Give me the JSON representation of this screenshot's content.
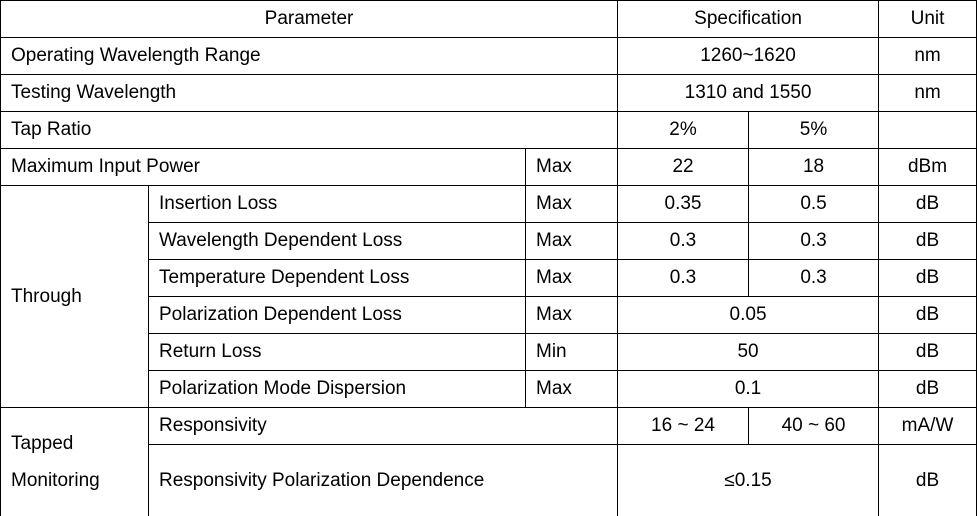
{
  "table": {
    "header": [
      "Parameter",
      "Specification",
      "Unit"
    ],
    "rows": [
      [
        "Operating Wavelength Range",
        "1260~1620",
        "nm"
      ],
      [
        "Testing Wavelength",
        "1310 and 1550",
        "nm"
      ],
      [
        "Tap Ratio",
        "2%",
        "5%"
      ],
      [
        "Maximum Input Power",
        "Max",
        "22",
        "18",
        "dBm"
      ],
      [
        "Through",
        "Insertion Loss",
        "Max",
        "0.35",
        "0.5",
        "dB"
      ],
      [
        "Wavelength Dependent Loss",
        "Max",
        "0.3",
        "0.3",
        "dB"
      ],
      [
        "Temperature Dependent Loss",
        "Max",
        "0.3",
        "0.3",
        "dB"
      ],
      [
        "Polarization Dependent Loss",
        "Max",
        "0.05",
        "dB"
      ],
      [
        "Return Loss",
        "Min",
        "50",
        "dB"
      ],
      [
        "Polarization Mode Dispersion",
        "Max",
        "0.1",
        "dB"
      ],
      [
        "Tapped\nMonitoring",
        "Responsivity",
        "16 ~ 24",
        "40 ~ 60",
        "mA/W"
      ],
      [
        "Responsivity Polarization Dependence",
        "≤0.15",
        "dB"
      ]
    ]
  }
}
